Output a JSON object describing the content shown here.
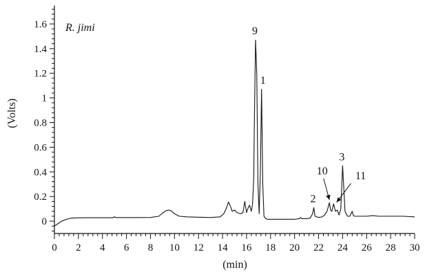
{
  "chart_data": {
    "type": "line",
    "title": "",
    "sample_label": "R. jimi",
    "xlabel": "(min)",
    "ylabel": "(Volts)",
    "xlim": [
      0,
      30
    ],
    "ylim": [
      -0.1,
      1.75
    ],
    "x_ticks": [
      0,
      2,
      4,
      6,
      8,
      10,
      12,
      14,
      16,
      18,
      20,
      22,
      24,
      26,
      28,
      30
    ],
    "y_ticks": [
      0,
      0.2,
      0.4,
      0.6,
      0.8,
      1,
      1.2,
      1.4,
      1.6
    ],
    "x_tick_labels": [
      "0",
      "2",
      "4",
      "6",
      "8",
      "10",
      "12",
      "14",
      "16",
      "18",
      "20",
      "22",
      "24",
      "26",
      "28",
      "30"
    ],
    "y_tick_labels": [
      "0",
      "0.2",
      "0.4",
      "0.6",
      "0.8",
      "1",
      "1.2",
      "1.4",
      "1.6"
    ],
    "grid": false,
    "series": [
      {
        "x": [
          0,
          0.3,
          0.6,
          1.0,
          1.4,
          2.0,
          3.0,
          4.0,
          4.9,
          5.0,
          5.1,
          6.0,
          7.0,
          8.0,
          8.7,
          9.0,
          9.3,
          9.5,
          9.7,
          10.0,
          10.4,
          11.0,
          12.0,
          13.0,
          13.8,
          14.1,
          14.3,
          14.5,
          14.7,
          14.8,
          15.0,
          15.2,
          15.5,
          15.7,
          15.85,
          16.0,
          16.1,
          16.25,
          16.4,
          16.5,
          16.6,
          16.65,
          16.75,
          16.85,
          16.95,
          17.05,
          17.15,
          17.25,
          17.35,
          17.45,
          17.6,
          17.8,
          18.0,
          19.0,
          20.0,
          20.4,
          20.5,
          20.6,
          21.0,
          21.3,
          21.5,
          21.6,
          21.7,
          22.0,
          22.3,
          22.5,
          22.7,
          22.9,
          23.0,
          23.1,
          23.25,
          23.4,
          23.55,
          23.7,
          23.85,
          24.0,
          24.2,
          24.4,
          24.6,
          24.7,
          24.8,
          24.9,
          25.0,
          26.0,
          26.5,
          27.0,
          28.0,
          29.0,
          30.0
        ],
        "y": [
          -0.04,
          -0.02,
          0.0,
          0.015,
          0.025,
          0.027,
          0.028,
          0.028,
          0.028,
          0.036,
          0.029,
          0.029,
          0.029,
          0.03,
          0.04,
          0.065,
          0.085,
          0.09,
          0.085,
          0.06,
          0.04,
          0.035,
          0.032,
          0.03,
          0.035,
          0.06,
          0.1,
          0.155,
          0.11,
          0.08,
          0.09,
          0.07,
          0.06,
          0.07,
          0.16,
          0.07,
          0.1,
          0.13,
          0.08,
          0.14,
          0.35,
          0.8,
          1.47,
          1.2,
          0.3,
          0.06,
          0.4,
          1.07,
          0.3,
          0.04,
          0.02,
          0.015,
          0.015,
          0.015,
          0.015,
          0.02,
          0.03,
          0.02,
          0.02,
          0.025,
          0.06,
          0.11,
          0.04,
          0.03,
          0.035,
          0.05,
          0.08,
          0.15,
          0.09,
          0.08,
          0.14,
          0.08,
          0.09,
          0.05,
          0.1,
          0.45,
          0.08,
          0.04,
          0.04,
          0.06,
          0.08,
          0.045,
          0.04,
          0.04,
          0.045,
          0.04,
          0.04,
          0.04,
          0.035
        ]
      }
    ],
    "annotations": [
      {
        "label": "9",
        "x": 16.75,
        "y": 1.47,
        "type": "top"
      },
      {
        "label": "1",
        "x": 17.25,
        "y": 1.07,
        "type": "top"
      },
      {
        "label": "3",
        "x": 24.0,
        "y": 0.45,
        "type": "top"
      },
      {
        "label": "2",
        "x": 21.6,
        "y": 0.11,
        "type": "top"
      },
      {
        "label": "10",
        "x": 22.9,
        "y": 0.15,
        "type": "arrow",
        "text_x": 22.3,
        "text_y": 0.38
      },
      {
        "label": "11",
        "x": 23.5,
        "y": 0.13,
        "type": "arrow",
        "text_x": 25.5,
        "text_y": 0.34
      }
    ]
  }
}
